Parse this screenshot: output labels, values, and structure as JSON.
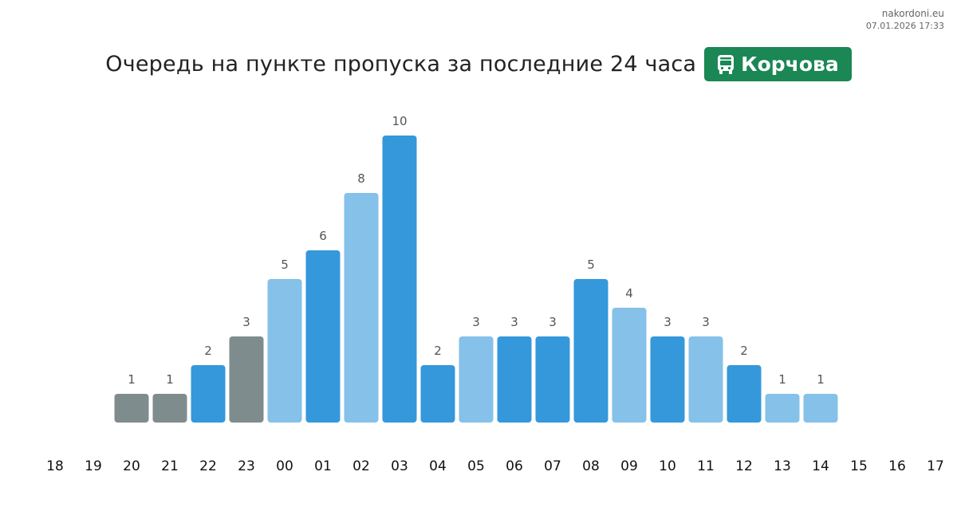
{
  "source": {
    "site": "nakordoni.eu",
    "timestamp": "07.01.2026 17:33"
  },
  "header": {
    "title": "Очередь на пункте пропуска за последние 24 часа",
    "badge_label": "Корчова",
    "badge_icon": "bus-icon",
    "badge_color": "#1a8754"
  },
  "chart_data": {
    "type": "bar",
    "categories": [
      "18",
      "19",
      "20",
      "21",
      "22",
      "23",
      "00",
      "01",
      "02",
      "03",
      "04",
      "05",
      "06",
      "07",
      "08",
      "09",
      "10",
      "11",
      "12",
      "13",
      "14",
      "15",
      "16",
      "17"
    ],
    "values": [
      null,
      null,
      1,
      1,
      2,
      3,
      5,
      6,
      8,
      10,
      2,
      3,
      3,
      3,
      5,
      4,
      3,
      3,
      2,
      1,
      1,
      null,
      null,
      null
    ],
    "colors": [
      "",
      "",
      "#7f8c8d",
      "#7f8c8d",
      "#3498db",
      "#7f8c8d",
      "#85c1e9",
      "#3498db",
      "#85c1e9",
      "#3498db",
      "#3498db",
      "#85c1e9",
      "#3498db",
      "#3498db",
      "#3498db",
      "#85c1e9",
      "#3498db",
      "#85c1e9",
      "#3498db",
      "#85c1e9",
      "#85c1e9",
      "",
      "",
      ""
    ],
    "ylim": [
      0,
      10
    ],
    "grid": false,
    "legend": "none",
    "title": "Очередь на пункте пропуска за последние 24 часа",
    "xlabel": "",
    "ylabel": ""
  }
}
